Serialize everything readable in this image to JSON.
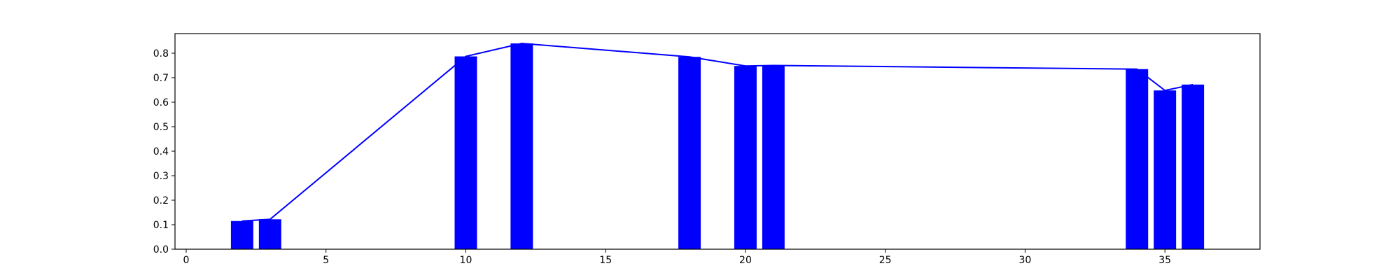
{
  "chart_data": {
    "type": "bar",
    "title": "",
    "xlabel": "",
    "ylabel": "",
    "xlim": [
      -0.4,
      38.4
    ],
    "ylim": [
      0,
      0.88
    ],
    "grid": false,
    "bar_width": 0.8,
    "bar_color": "#0000ff",
    "line_color": "#0000ff",
    "x": [
      2,
      3,
      10,
      12,
      18,
      20,
      21,
      34,
      35,
      36
    ],
    "values": [
      0.115,
      0.122,
      0.787,
      0.84,
      0.785,
      0.748,
      0.75,
      0.735,
      0.648,
      0.672
    ],
    "xticks": [
      0,
      5,
      10,
      15,
      20,
      25,
      30,
      35
    ],
    "yticks": [
      0.0,
      0.1,
      0.2,
      0.3,
      0.4,
      0.5,
      0.6,
      0.7,
      0.8
    ],
    "xtick_labels": [
      "0",
      "5",
      "10",
      "15",
      "20",
      "25",
      "30",
      "35"
    ],
    "ytick_labels": [
      "0.0",
      "0.1",
      "0.2",
      "0.3",
      "0.4",
      "0.5",
      "0.6",
      "0.7",
      "0.8"
    ]
  }
}
